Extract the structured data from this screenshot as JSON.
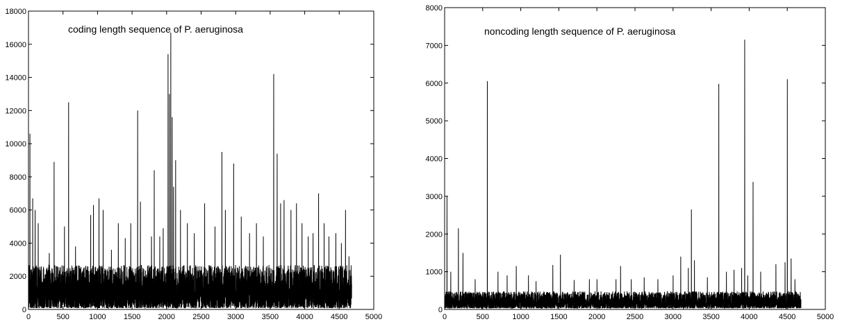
{
  "chart_data": [
    {
      "type": "line",
      "title": "coding length sequence of P. aeruginosa",
      "xlabel": "",
      "ylabel": "",
      "xlim": [
        0,
        5000
      ],
      "ylim": [
        0,
        18000
      ],
      "xticks": [
        0,
        500,
        1000,
        1500,
        2000,
        2500,
        3000,
        3500,
        4000,
        4500,
        5000
      ],
      "yticks": [
        0,
        2000,
        4000,
        6000,
        8000,
        10000,
        12000,
        14000,
        16000,
        18000
      ],
      "n_points": 4680,
      "baseline_max": 2600,
      "series_color": "#000000",
      "grid": false,
      "peaks": [
        [
          20,
          10600
        ],
        [
          60,
          6700
        ],
        [
          95,
          6000
        ],
        [
          140,
          5200
        ],
        [
          300,
          3400
        ],
        [
          370,
          8900
        ],
        [
          520,
          5000
        ],
        [
          580,
          12500
        ],
        [
          680,
          3800
        ],
        [
          900,
          5700
        ],
        [
          940,
          6300
        ],
        [
          1020,
          6700
        ],
        [
          1080,
          6000
        ],
        [
          1200,
          3600
        ],
        [
          1300,
          5200
        ],
        [
          1400,
          4300
        ],
        [
          1480,
          5200
        ],
        [
          1580,
          12000
        ],
        [
          1620,
          6500
        ],
        [
          1780,
          4400
        ],
        [
          1820,
          8400
        ],
        [
          1900,
          4400
        ],
        [
          1950,
          4900
        ],
        [
          2020,
          15400
        ],
        [
          2040,
          13000
        ],
        [
          2060,
          16700
        ],
        [
          2080,
          11600
        ],
        [
          2100,
          7400
        ],
        [
          2130,
          9000
        ],
        [
          2200,
          6000
        ],
        [
          2300,
          5200
        ],
        [
          2400,
          4600
        ],
        [
          2550,
          6400
        ],
        [
          2700,
          5000
        ],
        [
          2800,
          9500
        ],
        [
          2850,
          6000
        ],
        [
          2970,
          8800
        ],
        [
          3080,
          5600
        ],
        [
          3200,
          4600
        ],
        [
          3300,
          5200
        ],
        [
          3400,
          4400
        ],
        [
          3550,
          14200
        ],
        [
          3600,
          9400
        ],
        [
          3650,
          6400
        ],
        [
          3700,
          6600
        ],
        [
          3800,
          6000
        ],
        [
          3880,
          6400
        ],
        [
          3960,
          5200
        ],
        [
          4050,
          4400
        ],
        [
          4120,
          4600
        ],
        [
          4200,
          7000
        ],
        [
          4280,
          5200
        ],
        [
          4350,
          4400
        ],
        [
          4450,
          4600
        ],
        [
          4530,
          4000
        ],
        [
          4590,
          6000
        ],
        [
          4640,
          3200
        ]
      ]
    },
    {
      "type": "line",
      "title": "noncoding length sequence of P. aeruginosa",
      "xlabel": "",
      "ylabel": "",
      "xlim": [
        0,
        5000
      ],
      "ylim": [
        0,
        8000
      ],
      "xticks": [
        0,
        500,
        1000,
        1500,
        2000,
        2500,
        3000,
        3500,
        4000,
        4500,
        5000
      ],
      "yticks": [
        0,
        1000,
        2000,
        3000,
        4000,
        5000,
        6000,
        7000,
        8000
      ],
      "n_points": 4680,
      "baseline_max": 450,
      "series_color": "#000000",
      "grid": false,
      "peaks": [
        [
          30,
          3000
        ],
        [
          80,
          1000
        ],
        [
          180,
          2150
        ],
        [
          240,
          1500
        ],
        [
          400,
          800
        ],
        [
          560,
          6050
        ],
        [
          700,
          1000
        ],
        [
          820,
          900
        ],
        [
          940,
          1150
        ],
        [
          1100,
          900
        ],
        [
          1200,
          750
        ],
        [
          1420,
          1180
        ],
        [
          1520,
          1450
        ],
        [
          1700,
          780
        ],
        [
          1900,
          800
        ],
        [
          2000,
          800
        ],
        [
          2250,
          800
        ],
        [
          2310,
          1150
        ],
        [
          2450,
          800
        ],
        [
          2620,
          850
        ],
        [
          2800,
          800
        ],
        [
          3000,
          900
        ],
        [
          3100,
          1400
        ],
        [
          3200,
          1100
        ],
        [
          3240,
          2650
        ],
        [
          3280,
          1300
        ],
        [
          3450,
          850
        ],
        [
          3600,
          5980
        ],
        [
          3700,
          1000
        ],
        [
          3800,
          1050
        ],
        [
          3900,
          1100
        ],
        [
          3940,
          7150
        ],
        [
          3980,
          900
        ],
        [
          4050,
          3380
        ],
        [
          4150,
          1000
        ],
        [
          4350,
          1200
        ],
        [
          4470,
          1250
        ],
        [
          4500,
          6100
        ],
        [
          4550,
          1350
        ],
        [
          4600,
          800
        ]
      ]
    }
  ]
}
